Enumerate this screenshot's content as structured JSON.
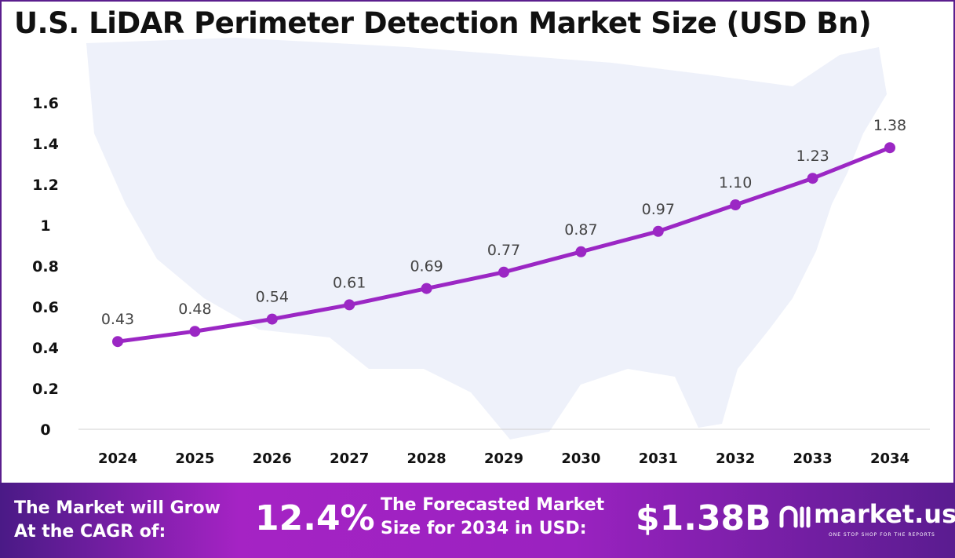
{
  "chart_data": {
    "type": "line",
    "title": "U.S. LiDAR Perimeter Detection Market Size (USD Bn)",
    "categories": [
      "2024",
      "2025",
      "2026",
      "2027",
      "2028",
      "2029",
      "2030",
      "2031",
      "2032",
      "2033",
      "2034"
    ],
    "values": [
      0.43,
      0.48,
      0.54,
      0.61,
      0.69,
      0.77,
      0.87,
      0.97,
      1.1,
      1.23,
      1.38
    ],
    "data_labels": [
      "0.43",
      "0.48",
      "0.54",
      "0.61",
      "0.69",
      "0.77",
      "0.87",
      "0.97",
      "1.10",
      "1.23",
      "1.38"
    ],
    "yticks": [
      "0",
      "0.2",
      "0.4",
      "0.6",
      "0.8",
      "1",
      "1.2",
      "1.4",
      "1.6"
    ],
    "ylim": [
      0,
      1.6
    ],
    "grid": false,
    "line_color": "#9b27c4"
  },
  "footer": {
    "cagr_text_1": "The Market will Grow",
    "cagr_text_2": "At the CAGR of:",
    "cagr_value": "12.4%",
    "forecast_text_1": "The Forecasted Market",
    "forecast_text_2": "Size for 2034 in USD:",
    "forecast_value": "$1.38B",
    "logo_name": "market.us",
    "logo_tagline": "ONE STOP SHOP FOR THE REPORTS"
  }
}
